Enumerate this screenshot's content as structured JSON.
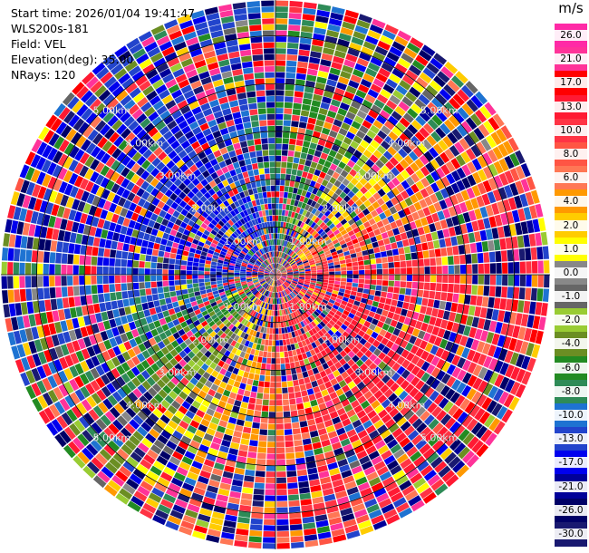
{
  "header": {
    "start_time": "Start time: 2026/01/04 19:41:47",
    "instrument": "WLS200s-181",
    "field": "Field: VEL",
    "elevation": "Elevation(deg): 35.00",
    "nrays": "NRays: 120"
  },
  "colorbar": {
    "unit": "m/s",
    "labels": [
      "26.0",
      "21.0",
      "17.0",
      "13.0",
      "10.0",
      "8.0",
      "6.0",
      "4.0",
      "2.0",
      "1.0",
      "0.0",
      "-1.0",
      "-2.0",
      "-4.0",
      "-6.0",
      "-8.0",
      "-10.0",
      "-13.0",
      "-17.0",
      "-21.0",
      "-26.0",
      "-30.0"
    ],
    "colors": [
      "#ff2aa6",
      "#ff3399",
      "#ff0000",
      "#ff1a33",
      "#ff3344",
      "#ff5544",
      "#ff7755",
      "#ff9900",
      "#ffcc00",
      "#ffff00",
      "#888888",
      "#666666",
      "#99cc33",
      "#6b8e23",
      "#228b22",
      "#2e8b57",
      "#1e73d2",
      "#2244cc",
      "#0000ee",
      "#000099",
      "#000066",
      "#191970"
    ]
  },
  "chart_data": {
    "type": "heatmap",
    "projection": "polar-ppi",
    "field": "VEL",
    "units": "m/s",
    "n_rays": 120,
    "range_ring_labels": [
      "1.00km",
      "2.00km",
      "3.00km",
      "4.00km",
      "5.00km"
    ],
    "range_rings_km": [
      1,
      2,
      3,
      4,
      5
    ],
    "max_range_km": 5.75,
    "value_range": [
      -30,
      26
    ],
    "note_pattern": "noisy velocities; coherent positive (red/yellow) sector to east and south-east, coherent negative (blue/green) sector to west and north-west"
  }
}
